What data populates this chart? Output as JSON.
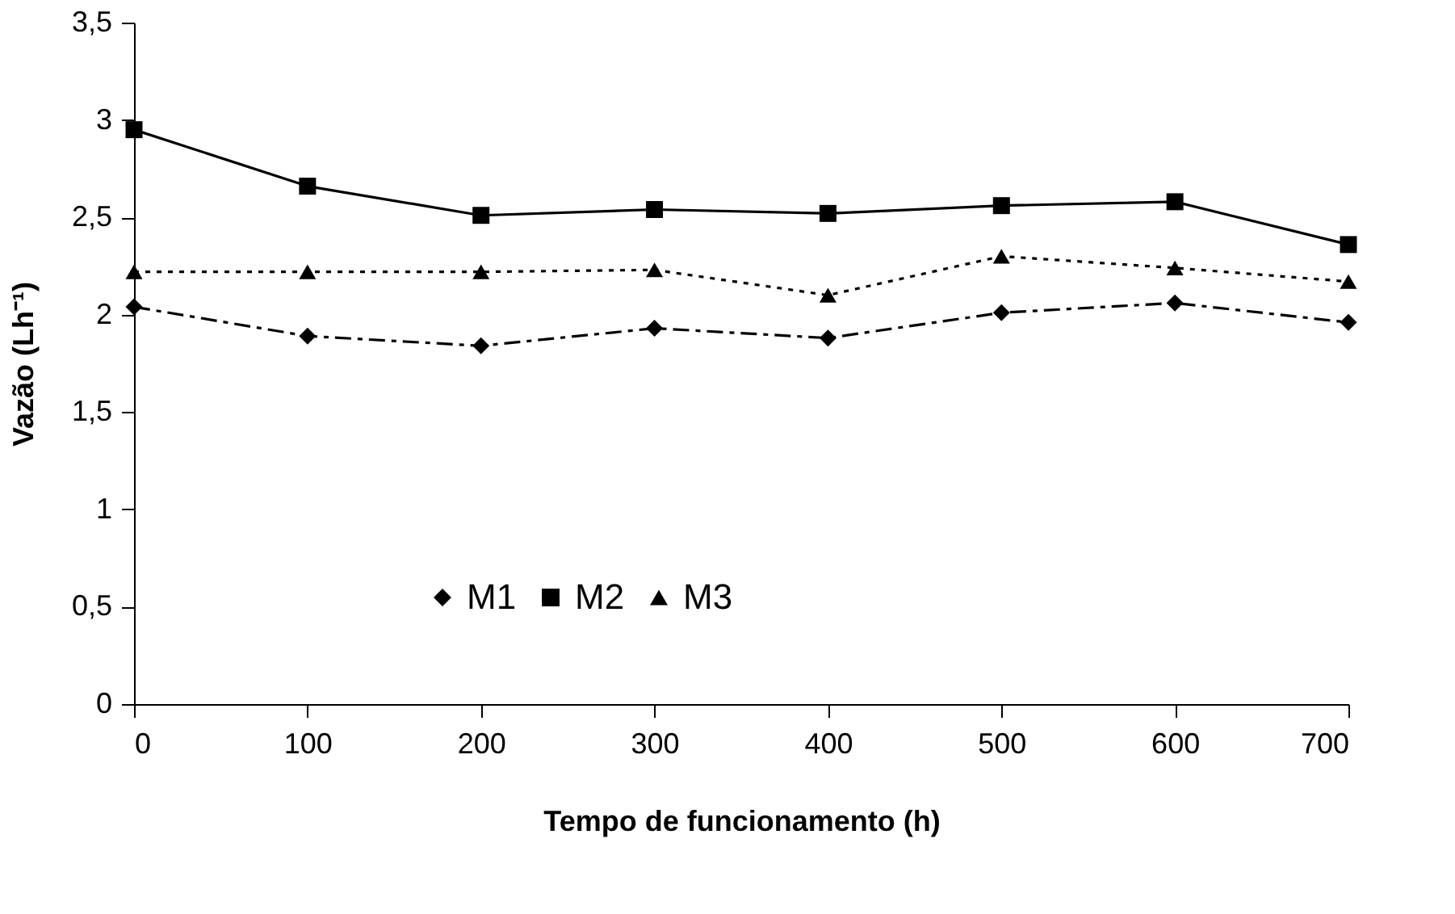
{
  "chart_data": {
    "type": "line",
    "xlabel": "Tempo de funcionamento (h)",
    "ylabel": "Vazão (Lh⁻¹)",
    "x": [
      0,
      100,
      200,
      300,
      400,
      500,
      600,
      700
    ],
    "series": [
      {
        "name": "M1",
        "color": "#000000",
        "marker": "diamond",
        "line_style": "dashdot",
        "values": [
          2.04,
          1.89,
          1.84,
          1.93,
          1.88,
          2.01,
          2.06,
          1.96
        ]
      },
      {
        "name": "M2",
        "color": "#000000",
        "marker": "square",
        "line_style": "solid",
        "values": [
          2.95,
          2.66,
          2.51,
          2.54,
          2.52,
          2.56,
          2.58,
          2.36
        ]
      },
      {
        "name": "M3",
        "color": "#000000",
        "marker": "triangle",
        "line_style": "dotted",
        "values": [
          2.22,
          2.22,
          2.22,
          2.23,
          2.1,
          2.3,
          2.24,
          2.17
        ]
      }
    ],
    "xlim": [
      0,
      700
    ],
    "xticks": [
      0,
      100,
      200,
      300,
      400,
      500,
      600,
      700
    ],
    "ylim": [
      0,
      3.5
    ],
    "yticks": [
      0,
      {
        "value": 0.5,
        "label": "0,5"
      },
      1,
      {
        "value": 1.5,
        "label": "1,5"
      },
      2,
      {
        "value": 2.5,
        "label": "2,5"
      },
      3,
      {
        "value": 3.5,
        "label": "3,5"
      }
    ],
    "grid": false,
    "legend": "bottom"
  }
}
